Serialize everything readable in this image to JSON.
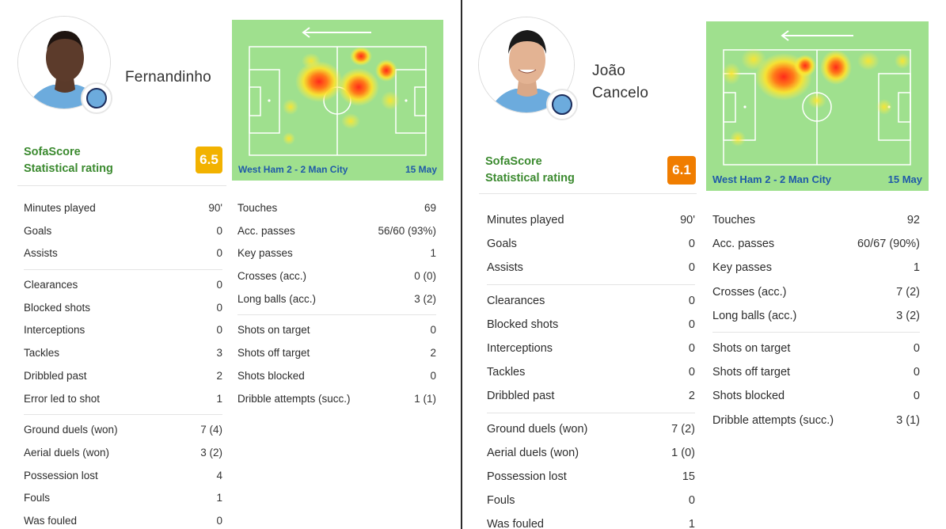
{
  "players": [
    {
      "name_lines": [
        "Fernandinho"
      ],
      "rating_label": [
        "SofaScore",
        "Statistical rating"
      ],
      "rating": "6.5",
      "rating_color": "#f2b200",
      "heatmap": {
        "match": "West Ham 2 - 2 Man City",
        "date": "15 May",
        "direction": "left"
      },
      "left_groups": [
        [
          [
            "Minutes played",
            "90'"
          ],
          [
            "Goals",
            "0"
          ],
          [
            "Assists",
            "0"
          ]
        ],
        [
          [
            "Clearances",
            "0"
          ],
          [
            "Blocked shots",
            "0"
          ],
          [
            "Interceptions",
            "0"
          ],
          [
            "Tackles",
            "3"
          ],
          [
            "Dribbled past",
            "2"
          ],
          [
            "Error led to shot",
            "1"
          ]
        ],
        [
          [
            "Ground duels (won)",
            "7 (4)"
          ],
          [
            "Aerial duels (won)",
            "3 (2)"
          ],
          [
            "Possession lost",
            "4"
          ],
          [
            "Fouls",
            "1"
          ],
          [
            "Was fouled",
            "0"
          ]
        ]
      ],
      "right_groups": [
        [
          [
            "Touches",
            "69"
          ],
          [
            "Acc. passes",
            "56/60 (93%)"
          ],
          [
            "Key passes",
            "1"
          ],
          [
            "Crosses (acc.)",
            "0 (0)"
          ],
          [
            "Long balls (acc.)",
            "3 (2)"
          ]
        ],
        [
          [
            "Shots on target",
            "0"
          ],
          [
            "Shots off target",
            "2"
          ],
          [
            "Shots blocked",
            "0"
          ],
          [
            "Dribble attempts (succ.)",
            "1 (1)"
          ]
        ]
      ]
    },
    {
      "name_lines": [
        "João",
        "Cancelo"
      ],
      "rating_label": [
        "SofaScore",
        "Statistical rating"
      ],
      "rating": "6.1",
      "rating_color": "#f07d00",
      "heatmap": {
        "match": "West Ham 2 - 2 Man City",
        "date": "15 May",
        "direction": "left"
      },
      "left_groups": [
        [
          [
            "Minutes played",
            "90'"
          ],
          [
            "Goals",
            "0"
          ],
          [
            "Assists",
            "0"
          ]
        ],
        [
          [
            "Clearances",
            "0"
          ],
          [
            "Blocked shots",
            "0"
          ],
          [
            "Interceptions",
            "0"
          ],
          [
            "Tackles",
            "0"
          ],
          [
            "Dribbled past",
            "2"
          ]
        ],
        [
          [
            "Ground duels (won)",
            "7 (2)"
          ],
          [
            "Aerial duels (won)",
            "1 (0)"
          ],
          [
            "Possession lost",
            "15"
          ],
          [
            "Fouls",
            "0"
          ],
          [
            "Was fouled",
            "1"
          ]
        ]
      ],
      "right_groups": [
        [
          [
            "Touches",
            "92"
          ],
          [
            "Acc. passes",
            "60/67 (90%)"
          ],
          [
            "Key passes",
            "1"
          ],
          [
            "Crosses (acc.)",
            "7 (2)"
          ],
          [
            "Long balls (acc.)",
            "3 (2)"
          ]
        ],
        [
          [
            "Shots on target",
            "0"
          ],
          [
            "Shots off target",
            "0"
          ],
          [
            "Shots blocked",
            "0"
          ],
          [
            "Dribble attempts (succ.)",
            "3 (1)"
          ]
        ]
      ]
    }
  ]
}
